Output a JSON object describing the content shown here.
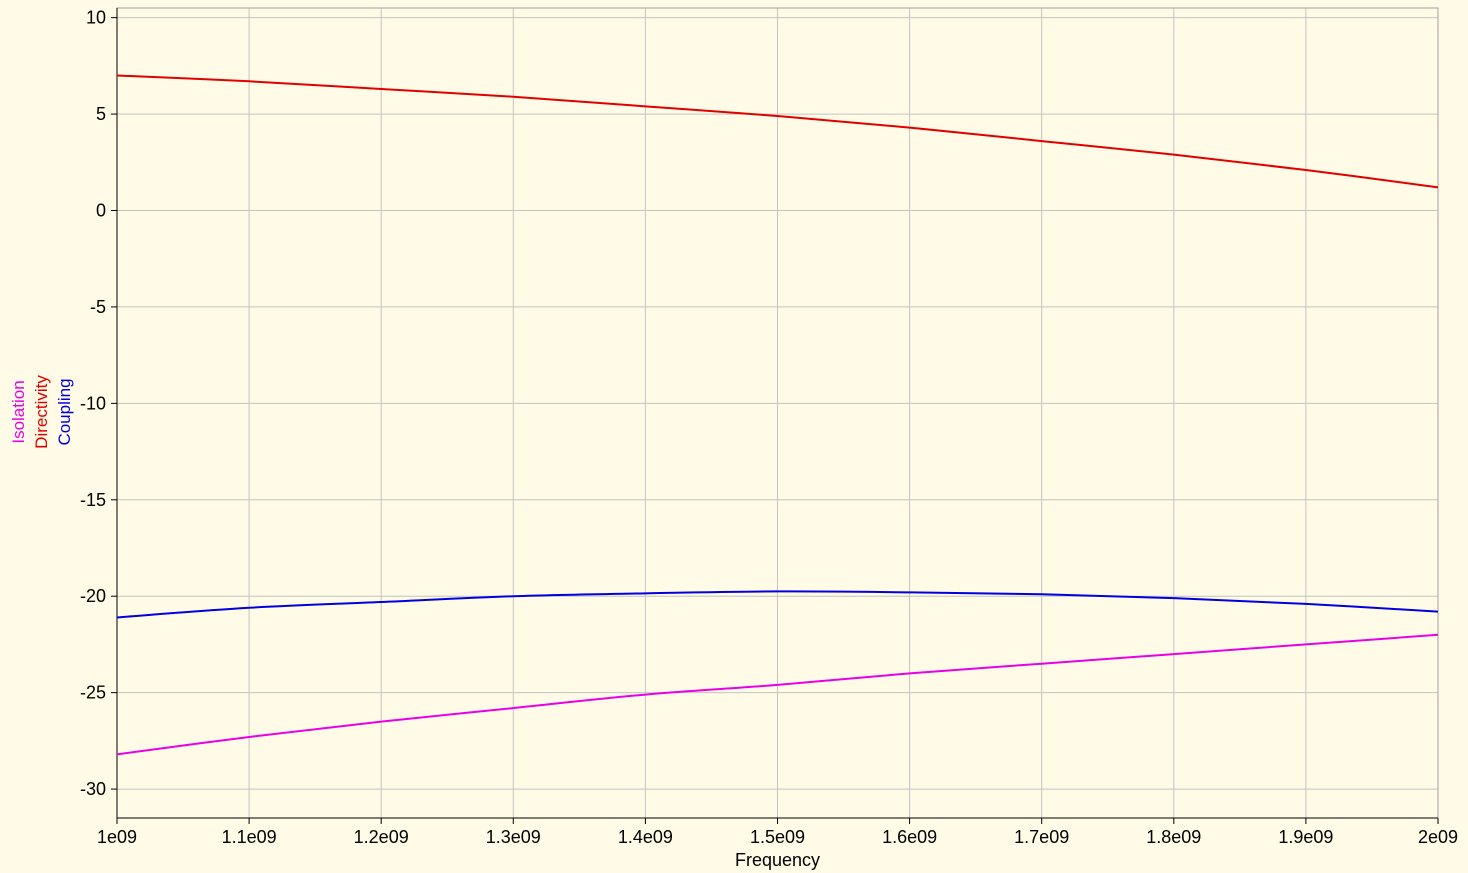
{
  "chart_data": {
    "type": "line",
    "xlabel": "Frequency",
    "ylabel": "",
    "xlim": [
      1000000000,
      2000000000
    ],
    "ylim": [
      -31.5,
      10.5
    ],
    "grid": true,
    "legend": "vertical-left",
    "background": "#fffbe6",
    "x_ticks": [
      {
        "value": 1000000000,
        "label": "1e09"
      },
      {
        "value": 1100000000,
        "label": "1.1e09"
      },
      {
        "value": 1200000000,
        "label": "1.2e09"
      },
      {
        "value": 1300000000,
        "label": "1.3e09"
      },
      {
        "value": 1400000000,
        "label": "1.4e09"
      },
      {
        "value": 1500000000,
        "label": "1.5e09"
      },
      {
        "value": 1600000000,
        "label": "1.6e09"
      },
      {
        "value": 1700000000,
        "label": "1.7e09"
      },
      {
        "value": 1800000000,
        "label": "1.8e09"
      },
      {
        "value": 1900000000,
        "label": "1.9e09"
      },
      {
        "value": 2000000000,
        "label": "2e09"
      }
    ],
    "y_ticks": [
      {
        "value": 10,
        "label": "10"
      },
      {
        "value": 5,
        "label": "5"
      },
      {
        "value": 0,
        "label": "0"
      },
      {
        "value": -5,
        "label": "-5"
      },
      {
        "value": -10,
        "label": "-10"
      },
      {
        "value": -15,
        "label": "-15"
      },
      {
        "value": -20,
        "label": "-20"
      },
      {
        "value": -25,
        "label": "-25"
      },
      {
        "value": -30,
        "label": "-30"
      }
    ],
    "x": [
      1000000000,
      1100000000,
      1200000000,
      1300000000,
      1400000000,
      1500000000,
      1600000000,
      1700000000,
      1800000000,
      1900000000,
      2000000000
    ],
    "series": [
      {
        "name": "Isolation",
        "color": "#e800e8",
        "values": [
          -28.2,
          -27.3,
          -26.5,
          -25.8,
          -25.1,
          -24.6,
          -24.0,
          -23.5,
          -23.0,
          -22.5,
          -22.0
        ]
      },
      {
        "name": "Directivity",
        "color": "#e00000",
        "values": [
          7.0,
          6.7,
          6.3,
          5.9,
          5.4,
          4.9,
          4.3,
          3.6,
          2.9,
          2.1,
          1.2
        ]
      },
      {
        "name": "Coupling",
        "color": "#0000e0",
        "values": [
          -21.1,
          -20.6,
          -20.3,
          -20.0,
          -19.85,
          -19.75,
          -19.8,
          -19.9,
          -20.1,
          -20.4,
          -20.8
        ]
      }
    ]
  }
}
